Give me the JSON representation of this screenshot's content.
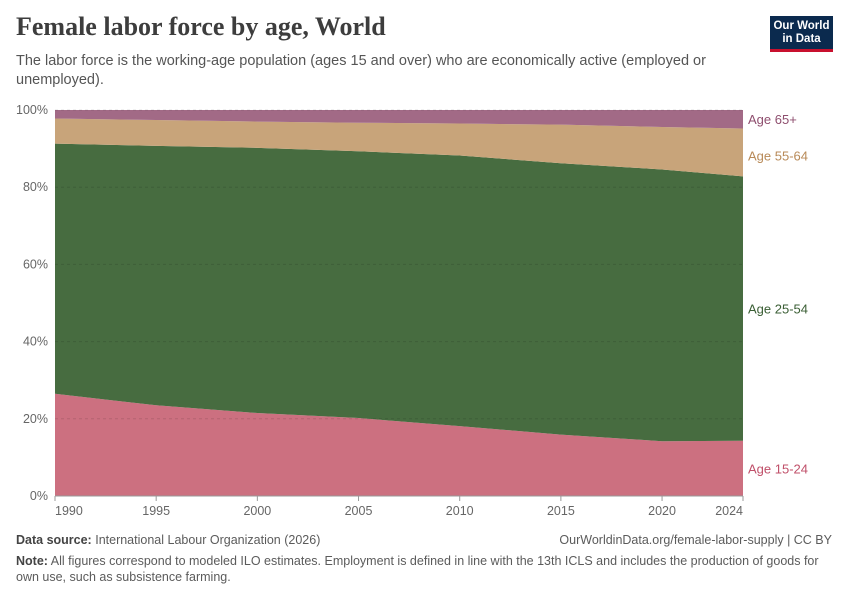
{
  "title": "Female labor force by age, World",
  "subtitle": "The labor force is the working-age population (ages 15 and over) who are economically active (employed or unemployed).",
  "logo": "Our World in Data",
  "footer": {
    "source_label": "Data source:",
    "source": "International Labour Organization (2026)",
    "url": "OurWorldinData.org/female-labor-supply | CC BY",
    "note_label": "Note:",
    "note": "All figures correspond to modeled ILO estimates. Employment is defined in line with the 13th ICLS and includes the production of goods for own use, such as subsistence farming."
  },
  "chart_data": {
    "type": "area",
    "stacked": true,
    "x": [
      1990,
      1995,
      2000,
      2005,
      2010,
      2015,
      2020,
      2024
    ],
    "xticks": [
      "1990",
      "1995",
      "2000",
      "2005",
      "2010",
      "2015",
      "2020",
      "2024"
    ],
    "yticks": [
      "0%",
      "20%",
      "40%",
      "60%",
      "80%",
      "100%"
    ],
    "ylim": [
      0,
      100
    ],
    "grid": true,
    "legend": "right-inline",
    "series": [
      {
        "name": "Age 15-24",
        "color": "#cc7080",
        "label_color": "#c0506a",
        "values": [
          26.5,
          23.5,
          21.5,
          20.2,
          18.1,
          15.9,
          14.2,
          14.3
        ]
      },
      {
        "name": "Age 25-54",
        "color": "#476c40",
        "label_color": "#3a5e34",
        "values": [
          64.8,
          67.2,
          68.7,
          69.1,
          70.1,
          70.3,
          70.4,
          68.5
        ]
      },
      {
        "name": "Age 55-64",
        "color": "#c8a47a",
        "label_color": "#b88a58",
        "values": [
          6.5,
          6.7,
          6.8,
          7.4,
          8.3,
          10.0,
          11.0,
          12.4
        ]
      },
      {
        "name": "Age 65+",
        "color": "#a26a86",
        "label_color": "#8e4e6e",
        "values": [
          2.2,
          2.6,
          3.0,
          3.3,
          3.5,
          3.8,
          4.4,
          4.8
        ]
      }
    ]
  }
}
